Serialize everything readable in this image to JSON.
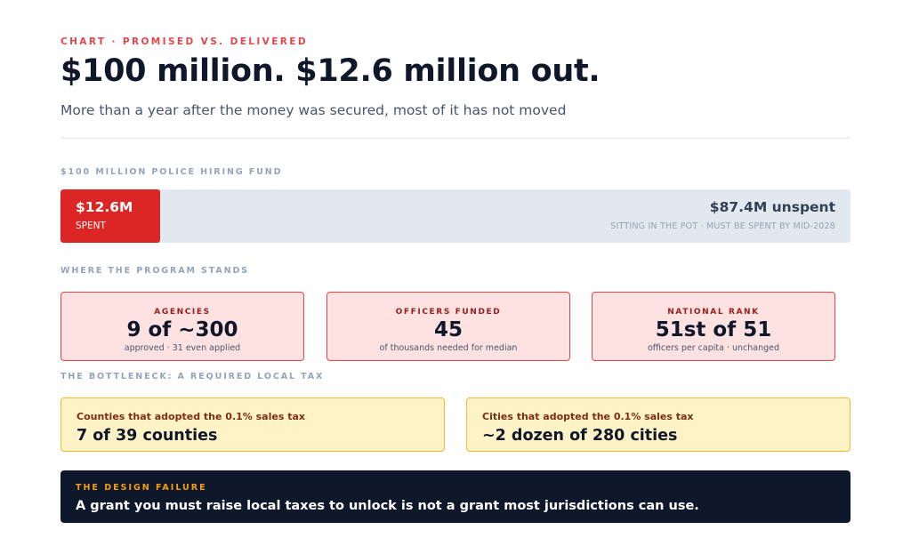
{
  "header": {
    "eyebrow": "CHART · PROMISED VS. DELIVERED",
    "title": "$100 million. $12.6 million out.",
    "subtitle": "More than a year after the money was secured, most of it has not moved"
  },
  "fund": {
    "section_label": "$100 MILLION POLICE HIRING FUND",
    "spent_value": "$12.6M",
    "spent_label": "SPENT",
    "unspent_value": "$87.4M unspent",
    "unspent_label": "SITTING IN THE POT · MUST BE SPENT BY MID-2028"
  },
  "stats": {
    "section_label": "WHERE THE PROGRAM STANDS",
    "cards": [
      {
        "label": "AGENCIES",
        "value": "9 of ~300",
        "note": "approved · 31 even applied"
      },
      {
        "label": "OFFICERS FUNDED",
        "value": "45",
        "note": "of thousands needed for median"
      },
      {
        "label": "NATIONAL RANK",
        "value": "51st of 51",
        "note": "officers per capita · unchanged"
      }
    ]
  },
  "bottleneck": {
    "section_label": "THE BOTTLENECK: A REQUIRED LOCAL TAX",
    "cards": [
      {
        "label": "Counties that adopted the 0.1% sales tax",
        "value": "7 of 39 counties"
      },
      {
        "label": "Cities that adopted the 0.1% sales tax",
        "value": "~2 dozen of 280 cities"
      }
    ]
  },
  "callout": {
    "label": "THE DESIGN FAILURE",
    "text": "A grant you must raise local taxes to unlock is not a grant most jurisdictions can use."
  },
  "colors": {
    "spent": "#dc2626",
    "unspent": "#e2e8f0",
    "stat_card_bg": "#fee2e2",
    "tax_card_bg": "#fef3c7",
    "callout_bg": "#0f172a"
  },
  "chart_data": {
    "type": "bar",
    "orientation": "horizontal-stacked",
    "unit": "$M",
    "total": 100,
    "series": [
      {
        "name": "SPENT",
        "value": 12.6
      },
      {
        "name": "unspent",
        "value": 87.4
      }
    ]
  }
}
